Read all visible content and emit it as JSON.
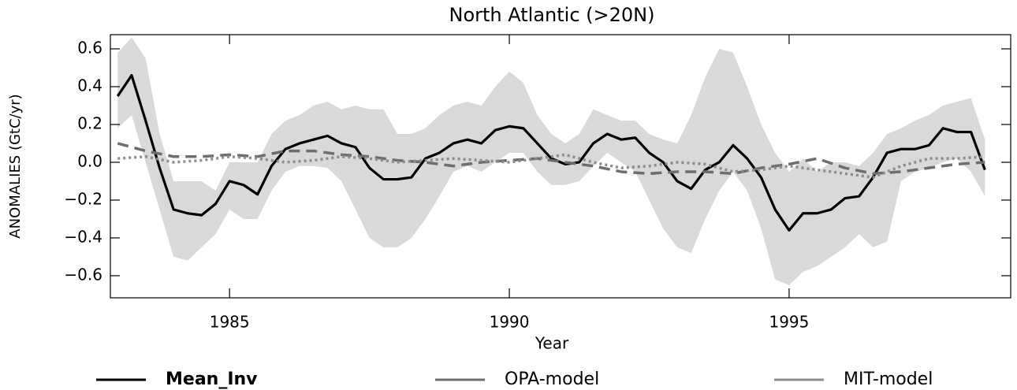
{
  "chart_data": {
    "type": "line",
    "title": "North Atlantic (>20N)",
    "x_label": "Year",
    "y_label": "ANOMALIES (GtC/yr)",
    "xlim": [
      1982.87,
      1998.96
    ],
    "ylim": [
      -0.717,
      0.675
    ],
    "xticks": [
      1985,
      1990,
      1995
    ],
    "yticks": [
      {
        "value": -0.6,
        "label": "−0.6"
      },
      {
        "value": -0.4,
        "label": "−0.4"
      },
      {
        "value": -0.2,
        "label": "−0.2"
      },
      {
        "value": 0,
        "label": "0.0"
      },
      0.2,
      0.4,
      0.6
    ],
    "x": [
      1983,
      1983.25,
      1983.5,
      1983.75,
      1984,
      1984.25,
      1984.5,
      1984.75,
      1985,
      1985.25,
      1985.5,
      1985.75,
      1986,
      1986.25,
      1986.5,
      1986.75,
      1987,
      1987.25,
      1987.5,
      1987.75,
      1988,
      1988.25,
      1988.5,
      1988.75,
      1989,
      1989.25,
      1989.5,
      1989.75,
      1990,
      1990.25,
      1990.5,
      1990.75,
      1991,
      1991.25,
      1991.5,
      1991.75,
      1992,
      1992.25,
      1992.5,
      1992.75,
      1993,
      1993.25,
      1993.5,
      1993.75,
      1994,
      1994.25,
      1994.5,
      1994.75,
      1995,
      1995.25,
      1995.5,
      1995.75,
      1996,
      1996.25,
      1996.5,
      1996.75,
      1997,
      1997.25,
      1997.5,
      1997.75,
      1998,
      1998.25,
      1998.5
    ],
    "band": {
      "color": "#d9d9d9",
      "upper": [
        0.58,
        0.66,
        0.55,
        0.15,
        -0.1,
        -0.1,
        -0.1,
        -0.15,
        0,
        0,
        0,
        0.15,
        0.22,
        0.25,
        0.3,
        0.32,
        0.28,
        0.3,
        0.28,
        0.28,
        0.15,
        0.15,
        0.18,
        0.25,
        0.3,
        0.32,
        0.3,
        0.4,
        0.48,
        0.42,
        0.25,
        0.15,
        0.1,
        0.15,
        0.28,
        0.25,
        0.22,
        0.22,
        0.15,
        0.12,
        0.1,
        0.25,
        0.45,
        0.6,
        0.58,
        0.4,
        0.2,
        0.05,
        -0.05,
        0.02,
        -0.05,
        0,
        0,
        -0.02,
        0.05,
        0.15,
        0.18,
        0.22,
        0.25,
        0.3,
        0.32,
        0.34,
        0.12
      ],
      "lower": [
        0.18,
        0.25,
        0,
        -0.25,
        -0.5,
        -0.52,
        -0.45,
        -0.38,
        -0.25,
        -0.3,
        -0.3,
        -0.15,
        -0.05,
        -0.02,
        -0.02,
        -0.03,
        -0.1,
        -0.25,
        -0.4,
        -0.45,
        -0.45,
        -0.4,
        -0.3,
        -0.18,
        -0.05,
        -0.02,
        -0.05,
        0,
        0.05,
        0.05,
        -0.05,
        -0.12,
        -0.12,
        -0.1,
        -0.02,
        0.05,
        0,
        -0.05,
        -0.2,
        -0.35,
        -0.45,
        -0.48,
        -0.3,
        -0.15,
        -0.05,
        -0.15,
        -0.35,
        -0.62,
        -0.65,
        -0.58,
        -0.55,
        -0.5,
        -0.45,
        -0.38,
        -0.45,
        -0.42,
        -0.1,
        -0.05,
        -0.03,
        0,
        0.02,
        -0.05,
        -0.18
      ]
    },
    "series": [
      {
        "name": "Mean_Inv",
        "color": "#000000",
        "dash": "solid",
        "values": [
          0.35,
          0.46,
          0.22,
          -0.03,
          -0.25,
          -0.27,
          -0.28,
          -0.22,
          -0.1,
          -0.12,
          -0.17,
          -0.02,
          0.07,
          0.1,
          0.12,
          0.14,
          0.1,
          0.08,
          -0.03,
          -0.09,
          -0.09,
          -0.08,
          0.02,
          0.05,
          0.1,
          0.12,
          0.1,
          0.17,
          0.19,
          0.18,
          0.1,
          0.02,
          -0.01,
          0,
          0.1,
          0.15,
          0.12,
          0.13,
          0.05,
          0,
          -0.1,
          -0.14,
          -0.04,
          0,
          0.09,
          0.02,
          -0.08,
          -0.25,
          -0.36,
          -0.27,
          -0.27,
          -0.25,
          -0.19,
          -0.18,
          -0.08,
          0.05,
          0.07,
          0.07,
          0.09,
          0.18,
          0.16,
          0.16,
          -0.04
        ]
      },
      {
        "name": "OPA-model",
        "color": "#6e6e6e",
        "dash": "dashed",
        "x": [
          1983,
          1983.5,
          1984,
          1984.5,
          1985,
          1985.5,
          1986,
          1986.5,
          1987,
          1987.5,
          1988,
          1988.5,
          1989,
          1989.5,
          1990,
          1990.5,
          1991,
          1991.5,
          1992,
          1992.5,
          1993,
          1993.5,
          1994,
          1994.5,
          1995,
          1995.5,
          1996,
          1996.5,
          1997,
          1997.5,
          1998,
          1998.5
        ],
        "values": [
          0.1,
          0.06,
          0.03,
          0.03,
          0.04,
          0.03,
          0.06,
          0.06,
          0.04,
          0.03,
          0.01,
          0,
          -0.02,
          0,
          0.01,
          0.02,
          0,
          -0.02,
          -0.05,
          -0.06,
          -0.05,
          -0.05,
          -0.06,
          -0.03,
          -0.01,
          0.02,
          -0.03,
          -0.06,
          -0.05,
          -0.03,
          -0.01,
          0
        ]
      },
      {
        "name": "MIT-model",
        "color": "#8c8c8c",
        "dash": "dotted",
        "x": [
          1983,
          1983.5,
          1984,
          1984.5,
          1985,
          1985.5,
          1986,
          1986.5,
          1987,
          1987.5,
          1988,
          1988.5,
          1989,
          1989.5,
          1990,
          1990.5,
          1991,
          1991.5,
          1992,
          1992.5,
          1993,
          1993.5,
          1994,
          1994.5,
          1995,
          1995.5,
          1996,
          1996.5,
          1997,
          1997.5,
          1998,
          1998.5
        ],
        "values": [
          0.02,
          0.03,
          0,
          0.01,
          0.03,
          0.02,
          0,
          0.01,
          0.03,
          0.02,
          0,
          0.01,
          0.02,
          0.01,
          0,
          0.02,
          0.04,
          0,
          -0.03,
          -0.02,
          0,
          -0.01,
          -0.05,
          -0.04,
          -0.02,
          -0.04,
          -0.06,
          -0.08,
          -0.02,
          0.02,
          0.02,
          0.03
        ]
      }
    ]
  }
}
